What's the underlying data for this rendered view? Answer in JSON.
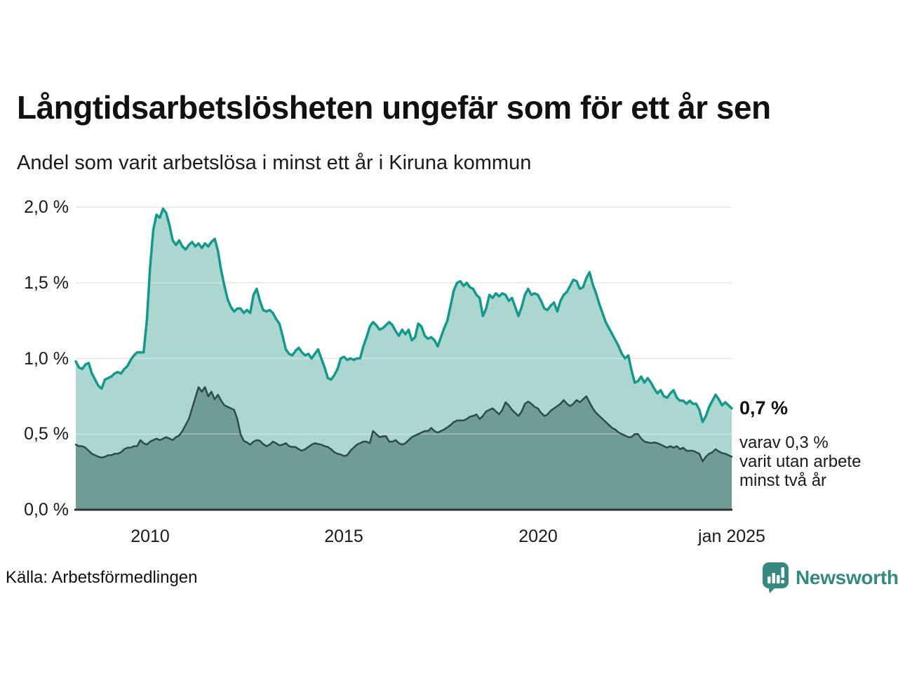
{
  "title": "Långtidsarbetslösheten ungefär som för ett år sen",
  "subtitle": "Andel som varit arbetslösa i minst ett år i Kiruna kommun",
  "source": "Källa: Arbetsförmedlingen",
  "logo": {
    "name": "Newsworthy",
    "icon": "newsworthy-speech-bubble-bar-chart-icon",
    "color": "#35897e"
  },
  "annotations": {
    "value_label": "0,7 %",
    "detail_lines": [
      "varav 0,3 %",
      "varit utan arbete",
      "minst två år"
    ]
  },
  "chart_data": {
    "type": "area",
    "title": "Långtidsarbetslösheten ungefär som för ett år sen",
    "subtitle": "Andel som varit arbetslösa i minst ett år i Kiruna kommun",
    "x_interval": "monthly",
    "x_start": "2008-02",
    "x_end": "2025-01",
    "x_domain": [
      2008.0833,
      2025.0
    ],
    "ylim": [
      0,
      2.0
    ],
    "grid": true,
    "colors": {
      "grid": "#d9d9d9",
      "axis": "#333333",
      "text": "#1a1a1a"
    },
    "y_ticks": [
      "0,0 %",
      "0,5 %",
      "1,0 %",
      "1,5 %",
      "2,0 %"
    ],
    "y_grid_values": [
      0.5,
      1.0,
      1.5,
      2.0
    ],
    "x_ticks": [
      {
        "label": "2010",
        "value": 2010
      },
      {
        "label": "2015",
        "value": 2015
      },
      {
        "label": "2020",
        "value": 2020
      },
      {
        "label": "jan 2025",
        "value": 2025
      }
    ],
    "series": [
      {
        "name": "Arbetslösa minst ett år",
        "line_color": "#13998b",
        "fill_color": "#abd7d0",
        "line_width": 3.5,
        "last_value_label": "0,7 %",
        "values": [
          0.98,
          0.94,
          0.93,
          0.96,
          0.97,
          0.9,
          0.86,
          0.82,
          0.8,
          0.86,
          0.87,
          0.88,
          0.9,
          0.91,
          0.9,
          0.93,
          0.95,
          0.99,
          1.02,
          1.04,
          1.04,
          1.04,
          1.25,
          1.6,
          1.85,
          1.95,
          1.93,
          1.99,
          1.96,
          1.88,
          1.78,
          1.75,
          1.78,
          1.74,
          1.72,
          1.75,
          1.77,
          1.74,
          1.76,
          1.73,
          1.76,
          1.74,
          1.77,
          1.79,
          1.71,
          1.58,
          1.48,
          1.39,
          1.34,
          1.31,
          1.33,
          1.33,
          1.3,
          1.32,
          1.3,
          1.42,
          1.46,
          1.38,
          1.32,
          1.31,
          1.32,
          1.3,
          1.26,
          1.23,
          1.15,
          1.06,
          1.03,
          1.02,
          1.05,
          1.07,
          1.04,
          1.02,
          1.03,
          1.0,
          1.03,
          1.06,
          1.0,
          0.94,
          0.87,
          0.86,
          0.89,
          0.93,
          1.0,
          1.01,
          0.99,
          1.0,
          0.99,
          1.0,
          1.0,
          1.08,
          1.14,
          1.21,
          1.24,
          1.22,
          1.19,
          1.2,
          1.22,
          1.24,
          1.22,
          1.18,
          1.15,
          1.19,
          1.16,
          1.19,
          1.12,
          1.14,
          1.23,
          1.21,
          1.15,
          1.13,
          1.14,
          1.12,
          1.08,
          1.14,
          1.2,
          1.25,
          1.35,
          1.45,
          1.5,
          1.51,
          1.48,
          1.5,
          1.47,
          1.46,
          1.42,
          1.4,
          1.28,
          1.33,
          1.42,
          1.4,
          1.43,
          1.41,
          1.43,
          1.42,
          1.38,
          1.4,
          1.34,
          1.28,
          1.34,
          1.42,
          1.46,
          1.42,
          1.43,
          1.42,
          1.38,
          1.33,
          1.32,
          1.35,
          1.37,
          1.31,
          1.38,
          1.42,
          1.44,
          1.48,
          1.52,
          1.51,
          1.46,
          1.47,
          1.53,
          1.57,
          1.49,
          1.43,
          1.36,
          1.3,
          1.24,
          1.2,
          1.16,
          1.12,
          1.08,
          1.03,
          1.0,
          1.02,
          0.92,
          0.84,
          0.85,
          0.88,
          0.84,
          0.87,
          0.84,
          0.8,
          0.77,
          0.79,
          0.75,
          0.74,
          0.77,
          0.79,
          0.74,
          0.72,
          0.72,
          0.7,
          0.72,
          0.7,
          0.7,
          0.66,
          0.58,
          0.62,
          0.68,
          0.72,
          0.76,
          0.73,
          0.69,
          0.71,
          0.69,
          0.67
        ]
      },
      {
        "name": "Arbetslösa minst två år",
        "line_color": "#2e4b46",
        "fill_color": "#6f9d96",
        "line_width": 2.5,
        "last_value_label": "0,3 %",
        "values": [
          0.43,
          0.42,
          0.42,
          0.41,
          0.39,
          0.37,
          0.36,
          0.35,
          0.345,
          0.35,
          0.36,
          0.36,
          0.37,
          0.37,
          0.38,
          0.4,
          0.41,
          0.41,
          0.42,
          0.42,
          0.46,
          0.44,
          0.43,
          0.45,
          0.46,
          0.47,
          0.46,
          0.47,
          0.48,
          0.47,
          0.46,
          0.48,
          0.49,
          0.52,
          0.56,
          0.6,
          0.67,
          0.74,
          0.81,
          0.78,
          0.81,
          0.75,
          0.78,
          0.73,
          0.76,
          0.72,
          0.69,
          0.68,
          0.67,
          0.66,
          0.6,
          0.5,
          0.455,
          0.445,
          0.43,
          0.45,
          0.46,
          0.455,
          0.435,
          0.42,
          0.43,
          0.45,
          0.44,
          0.425,
          0.43,
          0.44,
          0.42,
          0.415,
          0.415,
          0.4,
          0.39,
          0.4,
          0.415,
          0.43,
          0.44,
          0.435,
          0.43,
          0.42,
          0.415,
          0.4,
          0.38,
          0.37,
          0.365,
          0.355,
          0.36,
          0.39,
          0.41,
          0.43,
          0.44,
          0.45,
          0.45,
          0.44,
          0.52,
          0.5,
          0.48,
          0.485,
          0.486,
          0.45,
          0.45,
          0.46,
          0.44,
          0.43,
          0.44,
          0.46,
          0.48,
          0.49,
          0.5,
          0.51,
          0.52,
          0.52,
          0.54,
          0.52,
          0.51,
          0.52,
          0.53,
          0.545,
          0.56,
          0.58,
          0.59,
          0.59,
          0.59,
          0.6,
          0.615,
          0.62,
          0.63,
          0.6,
          0.62,
          0.65,
          0.66,
          0.67,
          0.65,
          0.63,
          0.66,
          0.71,
          0.69,
          0.66,
          0.64,
          0.62,
          0.65,
          0.7,
          0.715,
          0.7,
          0.68,
          0.67,
          0.64,
          0.62,
          0.63,
          0.655,
          0.67,
          0.685,
          0.7,
          0.725,
          0.7,
          0.685,
          0.7,
          0.725,
          0.71,
          0.73,
          0.75,
          0.71,
          0.67,
          0.64,
          0.62,
          0.6,
          0.58,
          0.56,
          0.54,
          0.53,
          0.51,
          0.5,
          0.49,
          0.48,
          0.48,
          0.5,
          0.5,
          0.47,
          0.45,
          0.445,
          0.44,
          0.445,
          0.44,
          0.43,
          0.42,
          0.41,
          0.42,
          0.41,
          0.42,
          0.4,
          0.41,
          0.39,
          0.39,
          0.39,
          0.38,
          0.37,
          0.32,
          0.35,
          0.37,
          0.38,
          0.4,
          0.385,
          0.375,
          0.37,
          0.36,
          0.35
        ]
      }
    ]
  }
}
